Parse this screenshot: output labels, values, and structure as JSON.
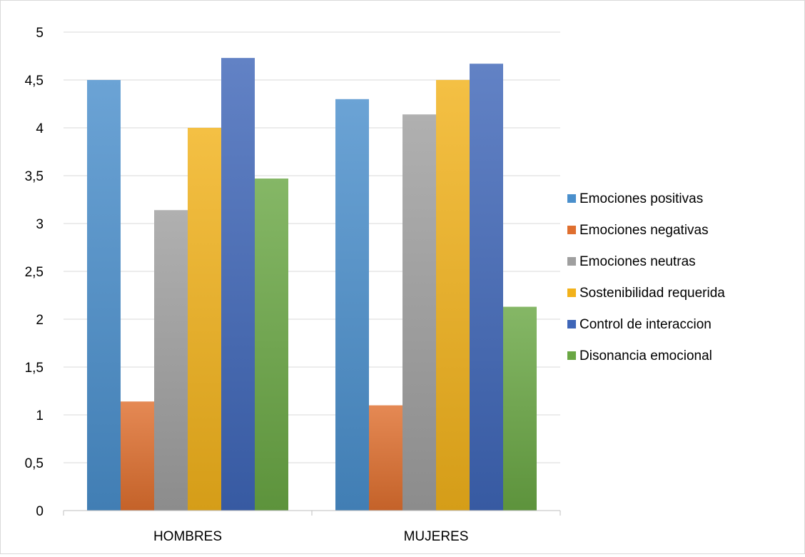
{
  "chart_data": {
    "type": "bar",
    "categories": [
      "HOMBRES",
      "MUJERES"
    ],
    "series": [
      {
        "name": "Emociones positivas",
        "values": [
          4.5,
          4.3
        ],
        "color": "#4a8fcc"
      },
      {
        "name": "Emociones negativas",
        "values": [
          1.14,
          1.1
        ],
        "color": "#df6f2f"
      },
      {
        "name": "Emociones neutras",
        "values": [
          3.14,
          4.14
        ],
        "color": "#9f9f9f"
      },
      {
        "name": "Sostenibilidad requerida",
        "values": [
          4.0,
          4.5
        ],
        "color": "#f2b21b"
      },
      {
        "name": "Control de interaccion",
        "values": [
          4.73,
          4.67
        ],
        "color": "#3f66b8"
      },
      {
        "name": "Disonancia emocional",
        "values": [
          3.47,
          2.13
        ],
        "color": "#6aa744"
      }
    ],
    "ylim": [
      0,
      5
    ],
    "yticks": [
      "0",
      "0,5",
      "1",
      "1,5",
      "2",
      "2,5",
      "3",
      "3,5",
      "4",
      "4,5",
      "5"
    ],
    "grid": true,
    "legend_position": "right"
  }
}
